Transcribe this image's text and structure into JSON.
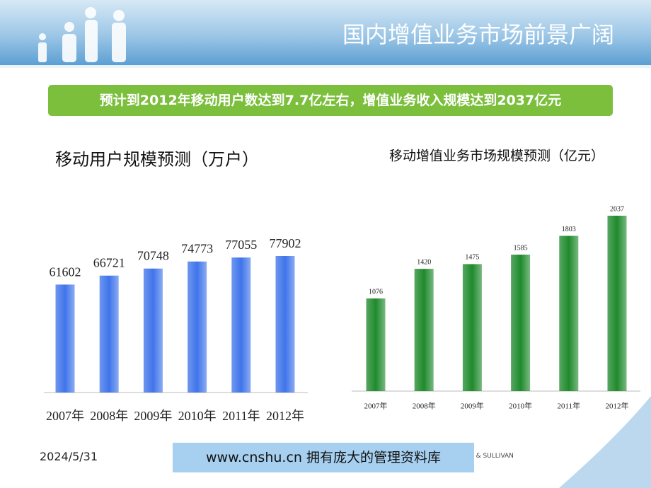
{
  "slide": {
    "title": "国内增值业务市场前景广阔",
    "banner": "预计到2012年移动用户数达到7.7亿左右，增值业务收入规模达到2037亿元",
    "date": "2024/5/31",
    "footer_site": "www.cnshu.cn  拥有庞大的管理资料库",
    "source": "FROST & SULLIVAN"
  },
  "chart_data": [
    {
      "type": "bar",
      "title": "移动用户规模预测（万户）",
      "categories": [
        "2007年",
        "2008年",
        "2009年",
        "2010年",
        "2011年",
        "2012年"
      ],
      "values": [
        61602,
        66721,
        70748,
        74773,
        77055,
        77902
      ],
      "color": "#3f74ea"
    },
    {
      "type": "bar",
      "title": "移动增值业务市场规模预测（亿元）",
      "categories": [
        "2007年",
        "2008年",
        "2009年",
        "2010年",
        "2011年",
        "2012年"
      ],
      "values": [
        1076,
        1420,
        1475,
        1585,
        1803,
        2037
      ],
      "color": "#1f8a2c"
    }
  ]
}
